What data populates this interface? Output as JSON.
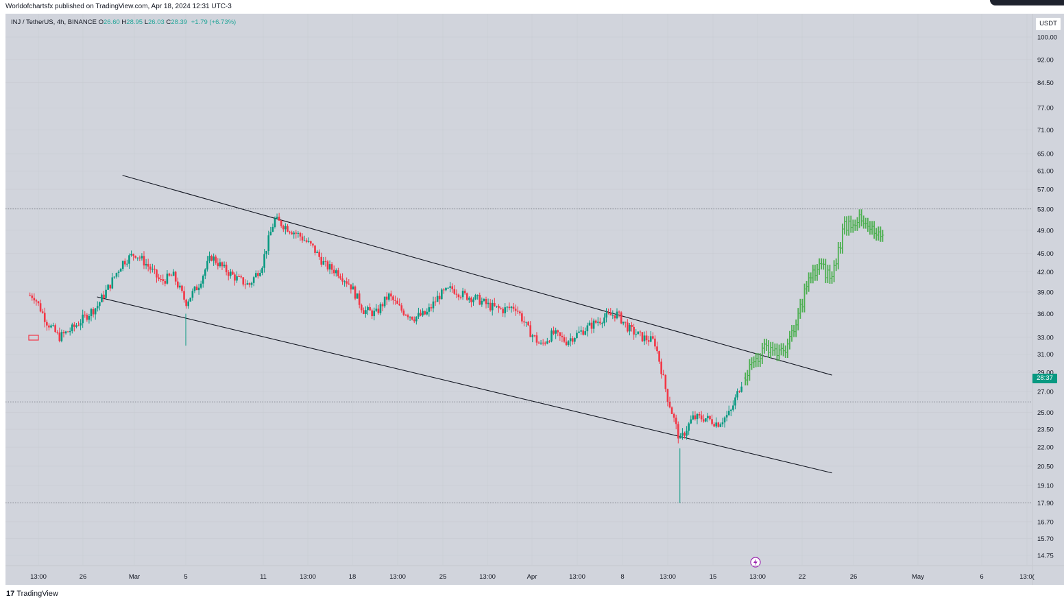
{
  "header": {
    "published": "Worldofchartsfx published on TradingView.com, Apr 18, 2024 12:31 UTC-3"
  },
  "legend": {
    "symbol": "INJ / TetherUS, 4h, BINANCE",
    "open_label": "O",
    "open": "26.60",
    "high_label": "H",
    "high": "28.95",
    "low_label": "L",
    "low": "26.03",
    "close_label": "C",
    "close": "28.39",
    "change": "+1.79 (+6.73%)"
  },
  "price_scale": {
    "unit": "USDT",
    "last_price": "28:37"
  },
  "footer": {
    "brand_mark": "17",
    "brand_name": "TradingView"
  },
  "colors": {
    "background": "#d1d4dc",
    "up": "#089981",
    "down": "#f23645",
    "projection": "#4caf50",
    "channel": "#131722",
    "badge": "#089981"
  },
  "chart_data": {
    "type": "candlestick",
    "title": "INJ / TetherUS, 4h, BINANCE",
    "y_scale": "log",
    "ylim": [
      14,
      104
    ],
    "y_ticks": [
      "100.00",
      "92.00",
      "84.50",
      "77.00",
      "71.00",
      "65.00",
      "61.00",
      "57.00",
      "53.00",
      "49.00",
      "45.00",
      "42.00",
      "39.00",
      "36.00",
      "33.00",
      "31.00",
      "29.00",
      "27.00",
      "25.00",
      "23.50",
      "22.00",
      "20.50",
      "19.10",
      "17.90",
      "16.70",
      "15.70",
      "14.75"
    ],
    "x_ticks": [
      "13:00",
      "26",
      "Mar",
      "5",
      "11",
      "13:00",
      "18",
      "13:00",
      "25",
      "13:00",
      "Apr",
      "13:00",
      "8",
      "13:00",
      "15",
      "13:00",
      "22",
      "26",
      "May",
      "6",
      "13:0("
    ],
    "horizontal_levels": [
      53.0,
      26.0,
      17.9
    ],
    "channel_upper": [
      [
        "Feb 29",
        60.0
      ],
      [
        "Apr 25",
        28.7
      ]
    ],
    "channel_lower": [
      [
        "Feb 27",
        38.3
      ],
      [
        "Apr 25",
        20.0
      ]
    ],
    "price_path": [
      [
        "Feb 22",
        38.5
      ],
      [
        "Feb 23",
        35.0
      ],
      [
        "Feb 24",
        33.0
      ],
      [
        "Feb 25",
        34.0
      ],
      [
        "Feb 26",
        35.5
      ],
      [
        "Feb 27",
        37.0
      ],
      [
        "Feb 28",
        40.0
      ],
      [
        "Feb 29",
        43.5
      ],
      [
        "Mar 1",
        45.0
      ],
      [
        "Mar 2",
        43.0
      ],
      [
        "Mar 3",
        40.5
      ],
      [
        "Mar 4",
        41.5
      ],
      [
        "Mar 5",
        37.5
      ],
      [
        "Mar 6",
        40.0
      ],
      [
        "Mar 7",
        44.5
      ],
      [
        "Mar 8",
        42.5
      ],
      [
        "Mar 9",
        41.0
      ],
      [
        "Mar 10",
        40.0
      ],
      [
        "Mar 11",
        43.0
      ],
      [
        "Mar 12",
        51.0
      ],
      [
        "Mar 13",
        49.5
      ],
      [
        "Mar 14",
        48.0
      ],
      [
        "Mar 15",
        46.0
      ],
      [
        "Mar 16",
        43.0
      ],
      [
        "Mar 17",
        42.0
      ],
      [
        "Mar 18",
        40.0
      ],
      [
        "Mar 19",
        36.5
      ],
      [
        "Mar 20",
        36.0
      ],
      [
        "Mar 21",
        38.5
      ],
      [
        "Mar 22",
        36.5
      ],
      [
        "Mar 23",
        35.5
      ],
      [
        "Mar 24",
        36.0
      ],
      [
        "Mar 25",
        38.5
      ],
      [
        "Mar 26",
        39.5
      ],
      [
        "Mar 27",
        38.5
      ],
      [
        "Mar 28",
        38.0
      ],
      [
        "Mar 29",
        37.0
      ],
      [
        "Mar 30",
        36.5
      ],
      [
        "Mar 31",
        37.0
      ],
      [
        "Apr 1",
        34.0
      ],
      [
        "Apr 2",
        32.0
      ],
      [
        "Apr 3",
        33.5
      ],
      [
        "Apr 4",
        32.5
      ],
      [
        "Apr 5",
        33.5
      ],
      [
        "Apr 6",
        34.5
      ],
      [
        "Apr 7",
        35.5
      ],
      [
        "Apr 8",
        36.0
      ],
      [
        "Apr 9",
        34.0
      ],
      [
        "Apr 10",
        33.0
      ],
      [
        "Apr 11",
        32.5
      ],
      [
        "Apr 12",
        26.5
      ],
      [
        "Apr 13",
        22.5
      ],
      [
        "Apr 14",
        24.5
      ],
      [
        "Apr 15",
        24.5
      ],
      [
        "Apr 16",
        24.0
      ],
      [
        "Apr 17",
        25.0
      ],
      [
        "Apr 18",
        28.4
      ]
    ],
    "wick_lows": [
      [
        "Apr 13",
        17.9
      ],
      [
        "Mar 5",
        32.0
      ]
    ],
    "projection_path": [
      [
        "Apr 18",
        28.4
      ],
      [
        "Apr 19",
        30.5
      ],
      [
        "Apr 20",
        32.0
      ],
      [
        "Apr 21",
        31.0
      ],
      [
        "Apr 22",
        33.5
      ],
      [
        "Apr 23",
        40.0
      ],
      [
        "Apr 24",
        43.0
      ],
      [
        "Apr 25",
        41.0
      ],
      [
        "Apr 26",
        50.0
      ],
      [
        "Apr 27",
        51.0
      ],
      [
        "Apr 28",
        49.0
      ],
      [
        "Apr 29",
        47.0
      ]
    ]
  }
}
